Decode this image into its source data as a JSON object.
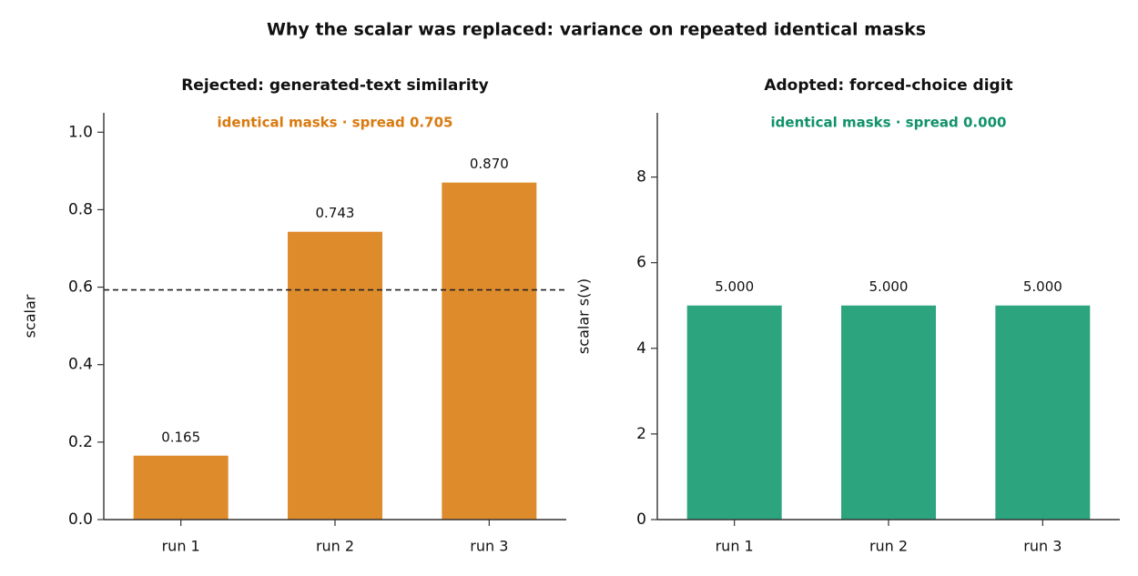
{
  "title": "Why the scalar was replaced: variance on repeated identical masks",
  "chart_data": [
    {
      "type": "bar",
      "title": "Rejected: generated-text similarity",
      "annotation": "identical masks  ·  spread 0.705",
      "annotation_color": "#d9790e",
      "ylabel": "scalar",
      "categories": [
        "run 1",
        "run 2",
        "run 3"
      ],
      "values": [
        0.165,
        0.743,
        0.87
      ],
      "value_labels": [
        "0.165",
        "0.743",
        "0.870"
      ],
      "color": "#de8b2c",
      "threshold": 0.593,
      "ylim": [
        0,
        1.05
      ],
      "yticks": [
        {
          "value": 0,
          "label": "0.0"
        },
        0.2,
        0.4,
        0.6,
        0.8,
        {
          "value": 1,
          "label": "1.0"
        }
      ]
    },
    {
      "type": "bar",
      "title": "Adopted: forced-choice digit",
      "annotation": "identical masks  ·  spread 0.000",
      "annotation_color": "#10916a",
      "ylabel": "scalar  s(v)",
      "categories": [
        "run 1",
        "run 2",
        "run 3"
      ],
      "values": [
        5,
        5,
        5
      ],
      "value_labels": [
        "5.000",
        "5.000",
        "5.000"
      ],
      "color": "#2ca57f",
      "ylim": [
        0,
        9.5
      ],
      "yticks": [
        0,
        2,
        4,
        6,
        8
      ]
    }
  ]
}
